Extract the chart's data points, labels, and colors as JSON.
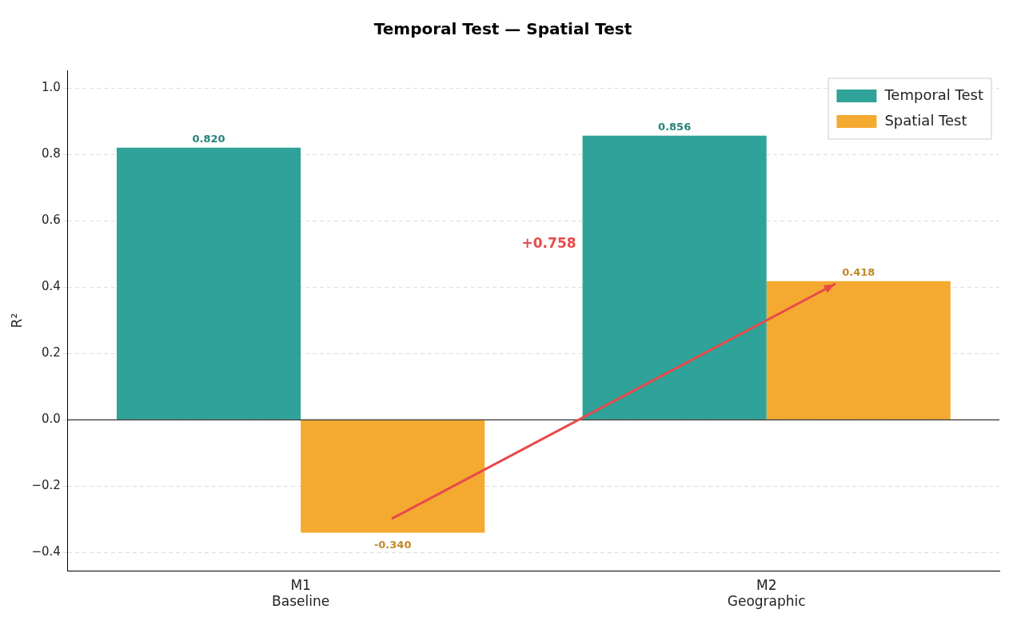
{
  "chart_data": {
    "type": "bar",
    "title": "Temporal Test — Spatial Test",
    "ylabel": "R²",
    "categories": [
      "M1\nBaseline",
      "M2\nGeographic"
    ],
    "series": [
      {
        "name": "Temporal Test",
        "color": "#2fa39a",
        "values": [
          0.82,
          0.856
        ],
        "value_labels": [
          "0.820",
          "0.856"
        ]
      },
      {
        "name": "Spatial Test",
        "color": "#f4aa31",
        "values": [
          -0.34,
          0.418
        ],
        "value_labels": [
          "-0.340",
          "0.418"
        ]
      }
    ],
    "ylim": [
      -0.455,
      1.053
    ],
    "yticks": [
      {
        "value": -0.4,
        "label": "−0.4"
      },
      {
        "value": -0.2,
        "label": "−0.2"
      },
      {
        "value": 0,
        "label": "0.0"
      },
      {
        "value": 0.2,
        "label": "0.2"
      },
      {
        "value": 0.4,
        "label": "0.4"
      },
      {
        "value": 0.6,
        "label": "0.6"
      },
      {
        "value": 0.8,
        "label": "0.8"
      },
      {
        "value": 1,
        "label": "1.0"
      }
    ],
    "ref_lines": [
      {
        "axis": "y",
        "value": 0,
        "color": "#000000"
      }
    ],
    "annotations": [
      "+0.758"
    ],
    "grid": "y",
    "legend": "top right"
  }
}
